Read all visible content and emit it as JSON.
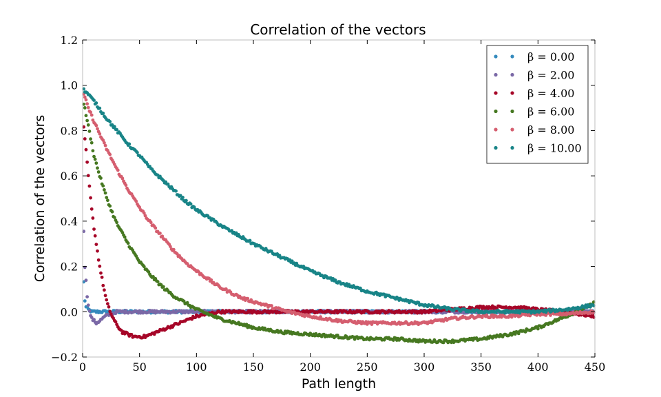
{
  "chart_data": {
    "type": "scatter",
    "title": "Correlation of the vectors",
    "xlabel": "Path length",
    "ylabel": "Correlation of the vectors",
    "xlim": [
      0,
      450
    ],
    "ylim": [
      -0.2,
      1.2
    ],
    "xticks": [
      "0",
      "50",
      "100",
      "150",
      "200",
      "250",
      "300",
      "350",
      "400",
      "450"
    ],
    "yticks": [
      "−0.2",
      "0.0",
      "0.2",
      "0.4",
      "0.6",
      "0.8",
      "1.0",
      "1.2"
    ],
    "grid": false,
    "legend_position": "top-right",
    "series": [
      {
        "name": "β = 0.00",
        "color": "#348ABD",
        "x": [
          1,
          2,
          3,
          5,
          8,
          12,
          20,
          30,
          50,
          75,
          100,
          150,
          200,
          250,
          300,
          350,
          400,
          450
        ],
        "y": [
          0.13,
          0.05,
          0.02,
          0.01,
          0.0,
          0.0,
          0.0,
          0.0,
          0.0,
          0.0,
          0.0,
          0.0,
          0.0,
          0.0,
          0.0,
          0.0,
          0.0,
          0.0
        ]
      },
      {
        "name": "β = 2.00",
        "color": "#7A68A6",
        "x": [
          1,
          2,
          4,
          6,
          8,
          10,
          12,
          15,
          20,
          25,
          30,
          40,
          50,
          75,
          100,
          150,
          200,
          250,
          300,
          350,
          400,
          450
        ],
        "y": [
          0.36,
          0.2,
          0.07,
          0.0,
          -0.03,
          -0.04,
          -0.05,
          -0.04,
          -0.02,
          -0.01,
          0.0,
          0.0,
          0.0,
          0.0,
          0.0,
          0.0,
          0.0,
          0.0,
          0.0,
          0.0,
          0.0,
          0.0
        ]
      },
      {
        "name": "β = 4.00",
        "color": "#A60628",
        "x": [
          1,
          3,
          5,
          8,
          10,
          12,
          15,
          18,
          20,
          22,
          25,
          30,
          35,
          40,
          45,
          50,
          55,
          60,
          70,
          80,
          90,
          100,
          110,
          120,
          150,
          200,
          250,
          300,
          350,
          380,
          400,
          420,
          450
        ],
        "y": [
          0.81,
          0.71,
          0.6,
          0.45,
          0.37,
          0.3,
          0.2,
          0.12,
          0.07,
          0.03,
          -0.01,
          -0.06,
          -0.09,
          -0.1,
          -0.11,
          -0.11,
          -0.11,
          -0.1,
          -0.08,
          -0.06,
          -0.04,
          -0.02,
          -0.01,
          0.0,
          0.0,
          0.0,
          0.0,
          0.0,
          0.02,
          0.02,
          0.01,
          0.0,
          -0.02
        ]
      },
      {
        "name": "β = 6.00",
        "color": "#467821",
        "x": [
          1,
          5,
          10,
          15,
          20,
          25,
          30,
          40,
          50,
          60,
          70,
          80,
          90,
          100,
          120,
          150,
          175,
          200,
          225,
          250,
          275,
          300,
          325,
          350,
          375,
          400,
          425,
          450
        ],
        "y": [
          0.92,
          0.82,
          0.69,
          0.6,
          0.52,
          0.45,
          0.39,
          0.3,
          0.22,
          0.16,
          0.11,
          0.07,
          0.04,
          0.01,
          -0.03,
          -0.07,
          -0.09,
          -0.1,
          -0.11,
          -0.12,
          -0.12,
          -0.13,
          -0.13,
          -0.12,
          -0.1,
          -0.07,
          -0.02,
          0.04
        ]
      },
      {
        "name": "β = 8.00",
        "color": "#D55E6F",
        "x": [
          1,
          5,
          10,
          20,
          30,
          40,
          50,
          60,
          70,
          80,
          90,
          100,
          120,
          140,
          160,
          180,
          200,
          225,
          250,
          275,
          300,
          325,
          350,
          375,
          400,
          425,
          450
        ],
        "y": [
          0.96,
          0.9,
          0.84,
          0.73,
          0.63,
          0.54,
          0.46,
          0.39,
          0.33,
          0.27,
          0.22,
          0.18,
          0.11,
          0.06,
          0.03,
          0.0,
          -0.02,
          -0.04,
          -0.05,
          -0.05,
          -0.05,
          -0.03,
          -0.02,
          -0.02,
          -0.01,
          -0.01,
          0.0
        ]
      },
      {
        "name": "β = 10.00",
        "color": "#188487",
        "x": [
          1,
          5,
          10,
          20,
          30,
          40,
          50,
          60,
          75,
          90,
          100,
          125,
          150,
          175,
          200,
          225,
          250,
          275,
          300,
          325,
          350,
          375,
          400,
          425,
          450
        ],
        "y": [
          0.98,
          0.96,
          0.93,
          0.86,
          0.8,
          0.74,
          0.69,
          0.63,
          0.56,
          0.49,
          0.45,
          0.37,
          0.3,
          0.24,
          0.18,
          0.13,
          0.09,
          0.06,
          0.03,
          0.01,
          0.0,
          0.0,
          0.0,
          0.01,
          0.03
        ]
      }
    ]
  }
}
